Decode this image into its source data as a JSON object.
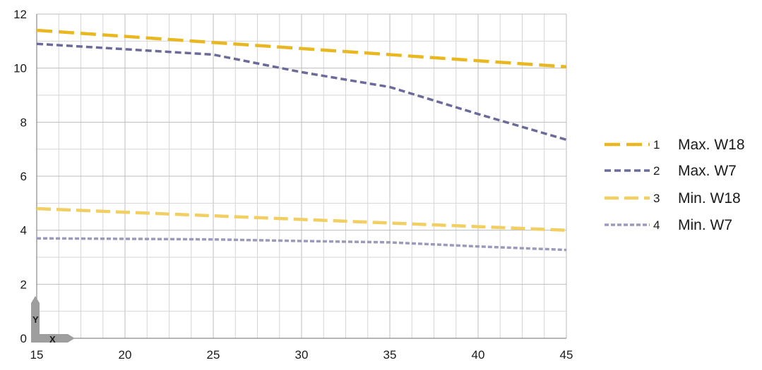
{
  "chart_data": {
    "type": "line",
    "title": "",
    "xlabel": "",
    "ylabel": "",
    "xlim": [
      15,
      45
    ],
    "ylim": [
      0,
      12
    ],
    "x_ticks": [
      15,
      20,
      25,
      30,
      35,
      40,
      45
    ],
    "y_ticks": [
      0,
      2,
      4,
      6,
      8,
      10,
      12
    ],
    "grid": true,
    "axis_badge": {
      "y_letter": "Y",
      "x_letter": "X"
    },
    "legend_placement": "right",
    "series": [
      {
        "number": "1",
        "name": "Max. W18",
        "color": "#e9b71f",
        "style": "long-dash",
        "points": [
          [
            15,
            11.4
          ],
          [
            45,
            10.05
          ]
        ]
      },
      {
        "number": "2",
        "name": "Max. W7",
        "color": "#6b6b99",
        "style": "short-dash",
        "points": [
          [
            15,
            10.9
          ],
          [
            20,
            10.7
          ],
          [
            25,
            10.5
          ],
          [
            30,
            9.85
          ],
          [
            35,
            9.3
          ],
          [
            40,
            8.3
          ],
          [
            45,
            7.35
          ]
        ]
      },
      {
        "number": "3",
        "name": "Min. W18",
        "color": "#f2cf62",
        "style": "long-dash-light",
        "points": [
          [
            15,
            4.8
          ],
          [
            45,
            4.0
          ]
        ]
      },
      {
        "number": "4",
        "name": "Min. W7",
        "color": "#9a9abd",
        "style": "dotted-light",
        "points": [
          [
            15,
            3.7
          ],
          [
            20,
            3.68
          ],
          [
            25,
            3.66
          ],
          [
            30,
            3.6
          ],
          [
            35,
            3.55
          ],
          [
            40,
            3.4
          ],
          [
            45,
            3.27
          ]
        ]
      }
    ]
  }
}
